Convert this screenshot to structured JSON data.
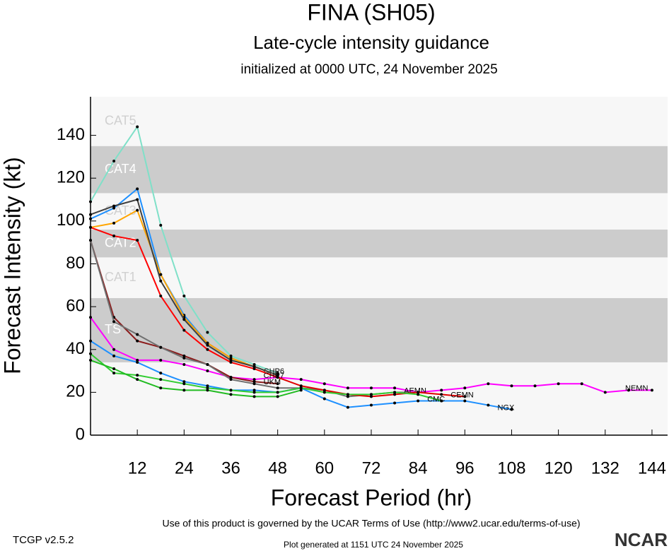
{
  "chart_data": {
    "type": "line",
    "title": "FINA (SH05)",
    "subtitle": "Late-cycle intensity guidance",
    "initialized": "initialized at 0000 UTC, 24 November 2025",
    "y_label": "Forecast Intensity (kt)",
    "x_label": "Forecast Period (hr)",
    "terms": "Use of this product is governed by the UCAR Terms of Use (http://www2.ucar.edu/terms-of-use)",
    "version": "TCGP v2.5.2",
    "generated": "Plot generated at 1151 UTC  24 November 2025",
    "logo": "NCAR",
    "xlim": [
      0,
      148
    ],
    "ylim": [
      0,
      158
    ],
    "xticks": [
      12,
      24,
      36,
      48,
      60,
      72,
      84,
      96,
      108,
      120,
      132,
      144
    ],
    "yticks": [
      0,
      20,
      40,
      60,
      80,
      100,
      120,
      140
    ],
    "bands": [
      {
        "label": "TS",
        "from": 34,
        "to": 64,
        "color": "#cccccc"
      },
      {
        "label": "CAT1",
        "from": 64,
        "to": 83,
        "color": "#f7f7f7"
      },
      {
        "label": "CAT2",
        "from": 83,
        "to": 96,
        "color": "#cccccc"
      },
      {
        "label": "CAT3",
        "from": 96,
        "to": 113,
        "color": "#f7f7f7"
      },
      {
        "label": "CAT4",
        "from": 113,
        "to": 135,
        "color": "#cccccc"
      },
      {
        "label": "CAT5",
        "from": 135,
        "color": "#f7f7f7"
      }
    ],
    "x": [
      0,
      6,
      12,
      18,
      24,
      30,
      36,
      42,
      48,
      54,
      60,
      66,
      72,
      78,
      84,
      90,
      96,
      102,
      108,
      114,
      120,
      126,
      132,
      138,
      144
    ],
    "series": [
      {
        "name": "NEMN",
        "color": "#ff00ff",
        "values": [
          55,
          40,
          35,
          35,
          33,
          30,
          27,
          26,
          27,
          26,
          24,
          22,
          22,
          22,
          20,
          21,
          22,
          24,
          23,
          23,
          24,
          24,
          20,
          21,
          21
        ]
      },
      {
        "name": "CHP6",
        "color": "#7fe0c8",
        "values": [
          109,
          128,
          144,
          98,
          65,
          48,
          37,
          33,
          29,
          null,
          null,
          null,
          null,
          null,
          null,
          null,
          null,
          null,
          null,
          null,
          null,
          null,
          null,
          null,
          null
        ]
      },
      {
        "color": "#1e90ff",
        "values": [
          101,
          106,
          115,
          75,
          56,
          43,
          36,
          32,
          28,
          null,
          null,
          null,
          null,
          null,
          null,
          null,
          null,
          null,
          null,
          null,
          null,
          null,
          null,
          null,
          null
        ]
      },
      {
        "color": "#ffa500",
        "values": [
          97,
          99,
          105,
          75,
          55,
          43,
          36,
          32,
          28,
          null,
          null,
          null,
          null,
          null,
          null,
          null,
          null,
          null,
          null,
          null,
          null,
          null,
          null,
          null,
          null
        ]
      },
      {
        "color": "#404040",
        "values": [
          103,
          107,
          110,
          72,
          54,
          42,
          35,
          32,
          28,
          null,
          null,
          null,
          null,
          null,
          null,
          null,
          null,
          null,
          null,
          null,
          null,
          null,
          null,
          null,
          null
        ]
      },
      {
        "name": "CHP7",
        "color": "#ff0000",
        "values": [
          97,
          93,
          91,
          65,
          49,
          40,
          34,
          31,
          27,
          null,
          null,
          null,
          null,
          null,
          null,
          null,
          null,
          null,
          null,
          null,
          null,
          null,
          null,
          null,
          null
        ]
      },
      {
        "name": "UKM",
        "color": "#8b1a1a",
        "values": [
          91,
          55,
          44,
          41,
          37,
          33,
          27,
          25,
          24,
          null,
          null,
          null,
          null,
          null,
          null,
          null,
          null,
          null,
          null,
          null,
          null,
          null,
          null,
          null,
          null
        ]
      },
      {
        "name": "AEMN",
        "color": "#707070",
        "values": [
          91,
          53,
          47,
          41,
          36,
          33,
          26,
          24,
          22,
          22,
          21,
          18,
          19,
          20,
          20,
          null,
          null,
          null,
          null,
          null,
          null,
          null,
          null,
          null,
          null
        ]
      },
      {
        "name": "CEMN",
        "color": "#e00000",
        "values": [
          null,
          null,
          null,
          null,
          null,
          null,
          null,
          null,
          27,
          23,
          21,
          19,
          18,
          19,
          20,
          19,
          18,
          null,
          null,
          null,
          null,
          null,
          null,
          null,
          null
        ]
      },
      {
        "name": "NGX",
        "color": "#1e90ff",
        "values": [
          44,
          37,
          34,
          29,
          25,
          23,
          21,
          21,
          20,
          22,
          17,
          13,
          14,
          15,
          16,
          16,
          16,
          14,
          12,
          null,
          null,
          null,
          null,
          null,
          null
        ]
      },
      {
        "name": "CMC",
        "color": "#32cd32",
        "values": [
          38,
          29,
          28,
          26,
          24,
          22,
          21,
          20,
          20,
          22,
          20,
          19,
          19,
          20,
          19,
          16,
          null,
          null,
          null,
          null,
          null,
          null,
          null,
          null,
          null
        ]
      },
      {
        "color": "#22bb22",
        "values": [
          35,
          31,
          26,
          22,
          21,
          21,
          19,
          18,
          18,
          21,
          null,
          null,
          null,
          null,
          null,
          null,
          null,
          null,
          null,
          null,
          null,
          null,
          null,
          null,
          null
        ]
      }
    ]
  }
}
